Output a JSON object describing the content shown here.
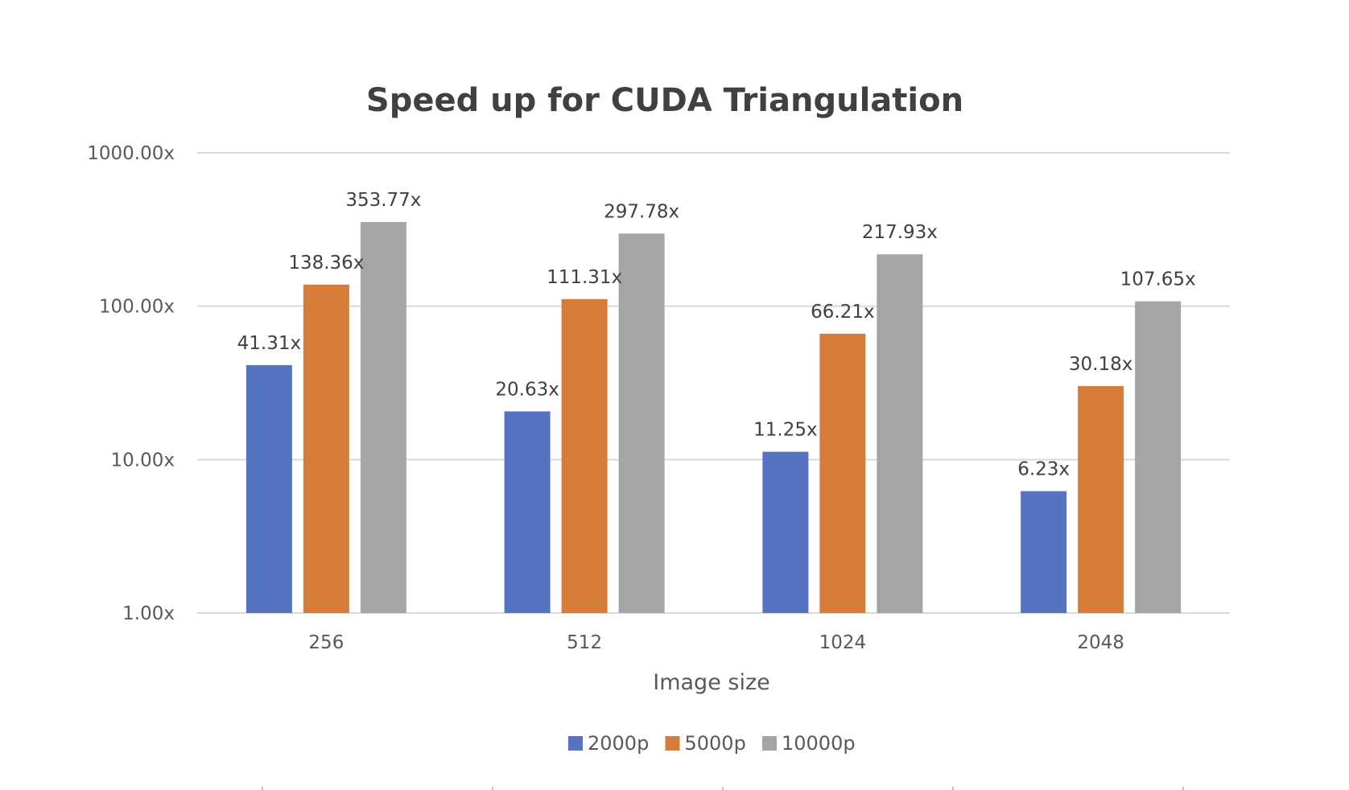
{
  "chart_data": {
    "type": "bar",
    "title": "Speed up for CUDA Triangulation",
    "xlabel": "Image size",
    "ylabel": "",
    "y_scale": "log",
    "ylim": [
      1,
      1000
    ],
    "y_ticks": [
      "1.00x",
      "10.00x",
      "100.00x",
      "1000.00x"
    ],
    "y_tick_values": [
      1,
      10,
      100,
      1000
    ],
    "categories": [
      "256",
      "512",
      "1024",
      "2048"
    ],
    "series": [
      {
        "name": "2000p",
        "color": "#5673c1",
        "values": [
          41.31,
          20.63,
          11.25,
          6.23
        ],
        "labels": [
          "41.31x",
          "20.63x",
          "11.25x",
          "6.23x"
        ]
      },
      {
        "name": "5000p",
        "color": "#d57c3b",
        "values": [
          138.36,
          111.31,
          66.21,
          30.18
        ],
        "labels": [
          "138.36x",
          "111.31x",
          "66.21x",
          "30.18x"
        ]
      },
      {
        "name": "10000p",
        "color": "#a5a5a5",
        "values": [
          353.77,
          297.78,
          217.93,
          107.65
        ],
        "labels": [
          "353.77x",
          "297.78x",
          "217.93x",
          "107.65x"
        ]
      }
    ],
    "grid": true,
    "legend_position": "bottom"
  }
}
